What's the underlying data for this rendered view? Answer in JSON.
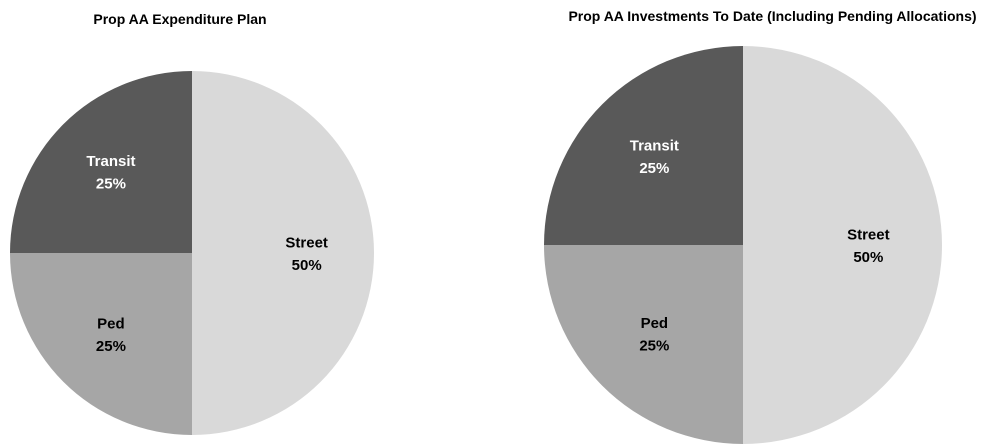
{
  "chart_data": [
    {
      "type": "pie",
      "title": "Prop AA Expenditure Plan",
      "categories": [
        "Street",
        "Ped",
        "Transit"
      ],
      "values": [
        50,
        25,
        25
      ],
      "value_labels": [
        "50%",
        "25%",
        "25%"
      ],
      "colors": [
        "#d9d9d9",
        "#a6a6a6",
        "#595959"
      ]
    },
    {
      "type": "pie",
      "title": "Prop AA Investments To Date (Including Pending Allocations)",
      "categories": [
        "Street",
        "Ped",
        "Transit"
      ],
      "values": [
        50,
        25,
        25
      ],
      "value_labels": [
        "50%",
        "25%",
        "25%"
      ],
      "colors": [
        "#d9d9d9",
        "#a6a6a6",
        "#595959"
      ]
    }
  ]
}
